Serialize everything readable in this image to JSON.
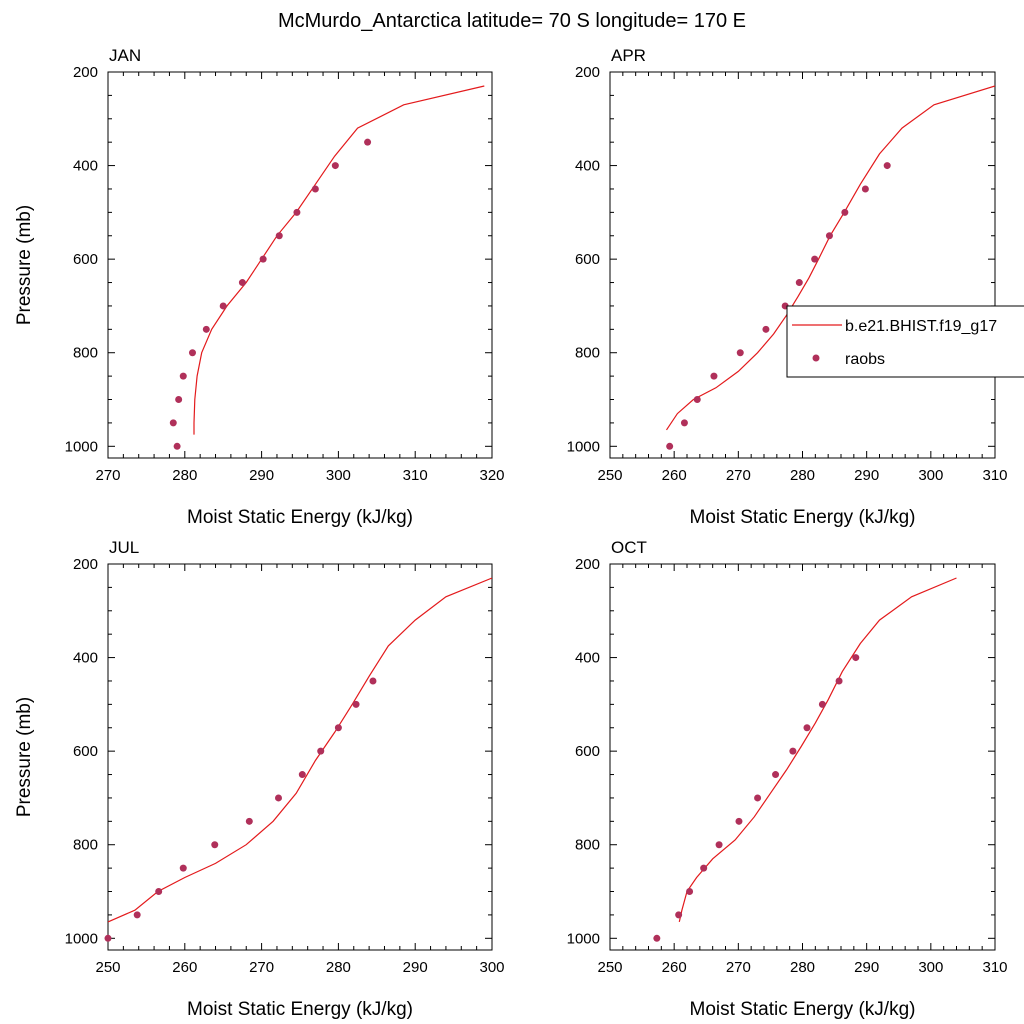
{
  "figure": {
    "title": "McMurdo_Antarctica  latitude= 70 S longitude= 170 E"
  },
  "legend": {
    "entries": [
      {
        "label": "b.e21.BHIST.f19_g17",
        "kind": "line"
      },
      {
        "label": "raobs",
        "kind": "marker"
      }
    ]
  },
  "colors": {
    "model_line": "#e31a1c",
    "raobs_marker": "#b0305a",
    "axis": "#000000"
  },
  "chart_data": [
    {
      "type": "line",
      "panel": "JAN",
      "title": "JAN",
      "xlabel": "Moist Static Energy (kJ/kg)",
      "ylabel": "Pressure (mb)",
      "xlim": [
        270,
        320
      ],
      "ylim": [
        1025,
        200
      ],
      "xticks": [
        270,
        280,
        290,
        300,
        310,
        320
      ],
      "yticks": [
        200,
        400,
        600,
        800,
        1000
      ],
      "series": [
        {
          "name": "b.e21.BHIST.f19_g17",
          "kind": "line",
          "x": [
            281.2,
            281.2,
            281.3,
            281.6,
            282.2,
            283.5,
            285.5,
            288.0,
            290.0,
            292.0,
            294.5,
            297.0,
            299.5,
            302.5,
            308.5,
            319.0
          ],
          "y": [
            975,
            950,
            900,
            850,
            800,
            750,
            700,
            650,
            600,
            550,
            500,
            440,
            380,
            320,
            270,
            230
          ]
        },
        {
          "name": "raobs",
          "kind": "marker",
          "x": [
            279.0,
            278.5,
            279.2,
            279.8,
            281.0,
            282.8,
            285.0,
            287.5,
            290.2,
            292.3,
            294.6,
            297.0,
            299.6,
            303.8
          ],
          "y": [
            1000,
            950,
            900,
            850,
            800,
            750,
            700,
            650,
            600,
            550,
            500,
            450,
            400,
            350
          ]
        }
      ]
    },
    {
      "type": "line",
      "panel": "APR",
      "title": "APR",
      "xlabel": "Moist Static Energy (kJ/kg)",
      "ylabel": "",
      "xlim": [
        250,
        310
      ],
      "ylim": [
        1025,
        200
      ],
      "xticks": [
        250,
        260,
        270,
        280,
        290,
        300,
        310
      ],
      "yticks": [
        200,
        400,
        600,
        800,
        1000
      ],
      "series": [
        {
          "name": "b.e21.BHIST.f19_g17",
          "kind": "line",
          "x": [
            258.8,
            260.5,
            263.0,
            266.5,
            270.0,
            273.0,
            275.5,
            277.5,
            279.3,
            281.0,
            282.5,
            284.3,
            286.5,
            289.0,
            292.0,
            295.5,
            300.5,
            310.0
          ],
          "y": [
            965,
            930,
            900,
            875,
            840,
            800,
            760,
            720,
            680,
            640,
            600,
            550,
            500,
            440,
            375,
            320,
            270,
            230
          ]
        },
        {
          "name": "raobs",
          "kind": "marker",
          "x": [
            259.3,
            261.6,
            263.6,
            266.2,
            270.3,
            274.3,
            277.3,
            279.5,
            281.9,
            284.2,
            286.6,
            289.8,
            293.2
          ],
          "y": [
            1000,
            950,
            900,
            850,
            800,
            750,
            700,
            650,
            600,
            550,
            500,
            450,
            400
          ]
        }
      ]
    },
    {
      "type": "line",
      "panel": "JUL",
      "title": "JUL",
      "xlabel": "Moist Static Energy (kJ/kg)",
      "ylabel": "Pressure (mb)",
      "xlim": [
        250,
        300
      ],
      "ylim": [
        1025,
        200
      ],
      "xticks": [
        250,
        260,
        270,
        280,
        290,
        300
      ],
      "yticks": [
        200,
        400,
        600,
        800,
        1000
      ],
      "series": [
        {
          "name": "b.e21.BHIST.f19_g17",
          "kind": "line",
          "x": [
            250.0,
            253.5,
            256.5,
            260.0,
            264.0,
            268.0,
            271.5,
            274.5,
            277.0,
            279.5,
            281.8,
            284.0,
            286.5,
            290.0,
            294.0,
            300.0
          ],
          "y": [
            965,
            940,
            900,
            870,
            840,
            800,
            750,
            690,
            620,
            560,
            500,
            440,
            375,
            320,
            270,
            230
          ]
        },
        {
          "name": "raobs",
          "kind": "marker",
          "x": [
            250.0,
            253.8,
            256.6,
            259.8,
            263.9,
            268.4,
            272.2,
            275.3,
            277.7,
            280.0,
            282.3,
            284.5
          ],
          "y": [
            1000,
            950,
            900,
            850,
            800,
            750,
            700,
            650,
            600,
            550,
            500,
            450
          ]
        }
      ]
    },
    {
      "type": "line",
      "panel": "OCT",
      "title": "OCT",
      "xlabel": "Moist Static Energy (kJ/kg)",
      "ylabel": "",
      "xlim": [
        250,
        310
      ],
      "ylim": [
        1025,
        200
      ],
      "xticks": [
        250,
        260,
        270,
        280,
        290,
        300,
        310
      ],
      "yticks": [
        200,
        400,
        600,
        800,
        1000
      ],
      "series": [
        {
          "name": "b.e21.BHIST.f19_g17",
          "kind": "line",
          "x": [
            260.8,
            261.2,
            262.0,
            263.5,
            266.0,
            269.5,
            272.5,
            275.0,
            277.5,
            279.8,
            282.0,
            284.0,
            286.2,
            289.0,
            292.0,
            297.0,
            304.0
          ],
          "y": [
            965,
            940,
            900,
            870,
            830,
            790,
            740,
            690,
            640,
            590,
            540,
            490,
            430,
            370,
            320,
            270,
            230
          ]
        },
        {
          "name": "raobs",
          "kind": "marker",
          "x": [
            257.3,
            260.7,
            262.4,
            264.6,
            267.0,
            270.1,
            273.0,
            275.8,
            278.5,
            280.7,
            283.1,
            285.7,
            288.3
          ],
          "y": [
            1000,
            950,
            900,
            850,
            800,
            750,
            700,
            650,
            600,
            550,
            500,
            450,
            400
          ]
        }
      ]
    }
  ]
}
